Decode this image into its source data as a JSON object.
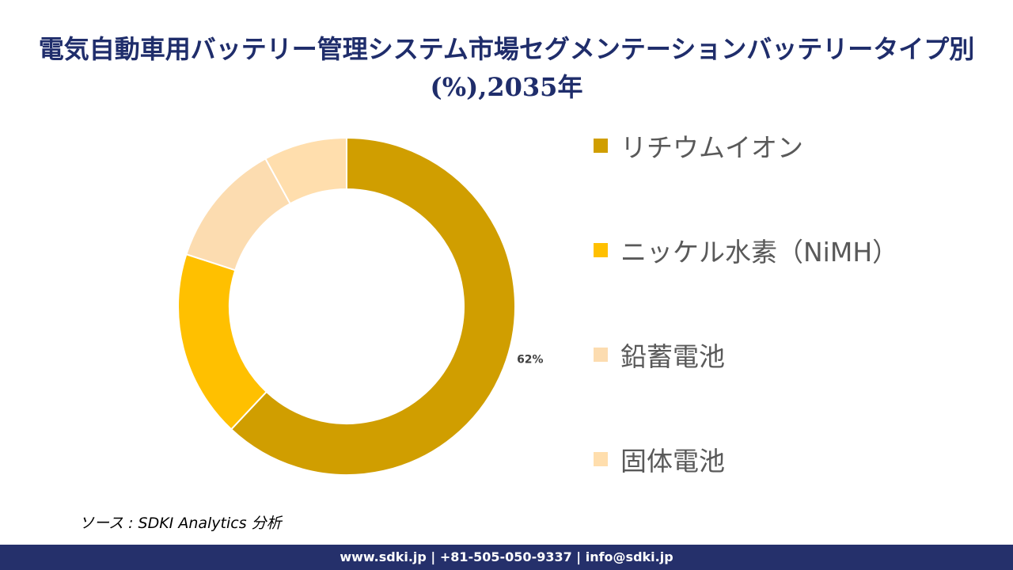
{
  "title": "電気自動車用バッテリー管理システム市場セグメンテーションバッテリータイプ別(%),2035年",
  "chart_data": {
    "type": "pie",
    "subtype": "donut",
    "title": "電気自動車用バッテリー管理システム市場セグメンテーションバッテリータイプ別(%),2035年",
    "categories": [
      "リチウムイオン",
      "ニッケル水素（NiMH）",
      "鉛蓄電池",
      "固体電池"
    ],
    "values": [
      62,
      18,
      12,
      8
    ],
    "data_labels": [
      "62%",
      "",
      "",
      ""
    ],
    "colors": [
      "#D09E00",
      "#FFC000",
      "#FCDCB0",
      "#FFDEAD"
    ],
    "legend_position": "right"
  },
  "source": "ソース : SDKI Analytics  分析",
  "footer": "www.sdki.jp | +81-505-050-9337 | info@sdki.jp"
}
